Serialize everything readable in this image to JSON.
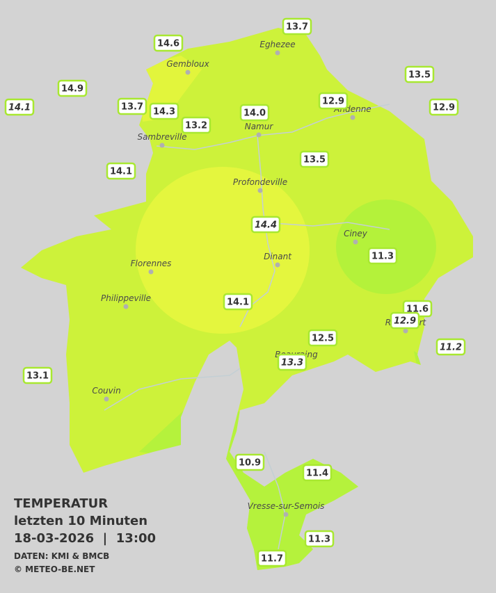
{
  "header": {
    "title": "TEMPERATUR",
    "subtitle": "letzten 10 Minuten",
    "datetime": "18-03-2026  |  13:00",
    "source": "DATEN: KMI & BMCB",
    "copyright": "© METEO-BE.NET"
  },
  "cities": [
    "Eghezee",
    "Gembloux",
    "Andenne",
    "Namur",
    "Sambreville",
    "Profondeville",
    "Ciney",
    "Florennes",
    "Dinant",
    "Philippeville",
    "Rochefort",
    "Beauraing",
    "Couvin",
    "Vresse-sur-Semois"
  ],
  "stations": [
    "13.7",
    "14.6",
    "14.9",
    "14.1",
    "13.7",
    "14.3",
    "13.2",
    "14.0",
    "12.9",
    "13.5",
    "12.9",
    "13.5",
    "14.1",
    "14.4",
    "11.3",
    "14.1",
    "11.6",
    "12.9",
    "12.5",
    "13.3",
    "11.2",
    "13.1",
    "10.9",
    "11.4",
    "11.3",
    "11.7"
  ]
}
